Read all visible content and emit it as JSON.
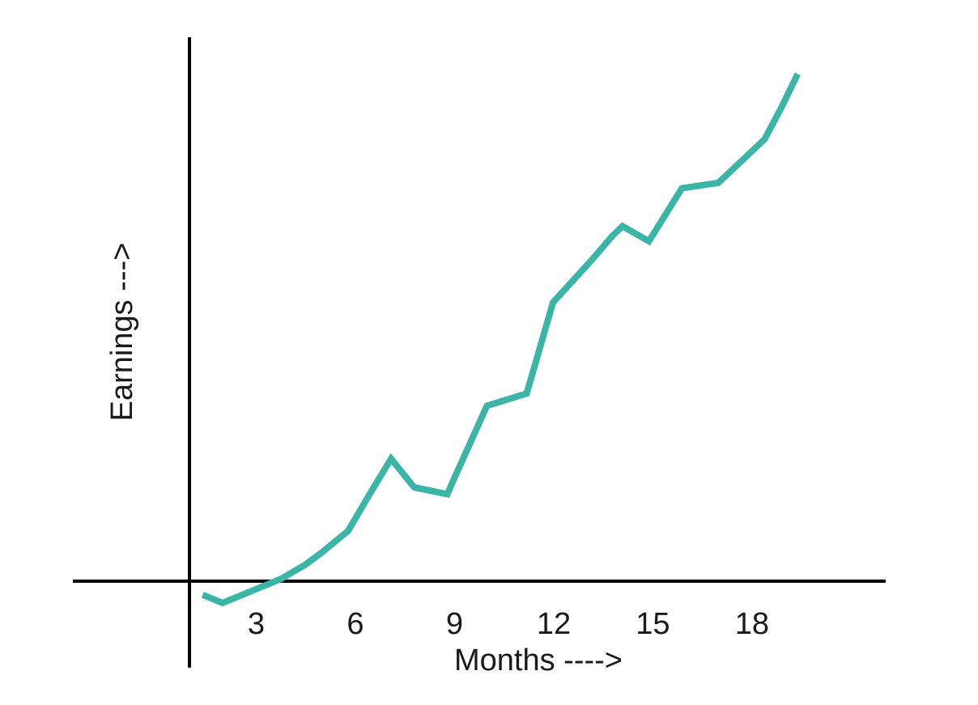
{
  "chart_data": {
    "type": "line",
    "title": "",
    "xlabel": "Months ---->",
    "ylabel": "Earnings --->",
    "x_ticks": [
      3,
      6,
      9,
      12,
      15,
      18
    ],
    "xlim": [
      -3.5,
      21
    ],
    "ylim": [
      -1,
      40
    ],
    "grid": false,
    "series": [
      {
        "color": "#3bb5a6",
        "points": [
          {
            "x": 0.4,
            "y": -1.0
          },
          {
            "x": 1.0,
            "y": -1.6
          },
          {
            "x": 2.4,
            "y": -0.2
          },
          {
            "x": 2.8,
            "y": 0.2
          },
          {
            "x": 3.5,
            "y": 1.2
          },
          {
            "x": 4.0,
            "y": 2.1
          },
          {
            "x": 4.8,
            "y": 3.7
          },
          {
            "x": 5.5,
            "y": 6.6
          },
          {
            "x": 6.1,
            "y": 9.0
          },
          {
            "x": 6.8,
            "y": 6.9
          },
          {
            "x": 7.8,
            "y": 6.4
          },
          {
            "x": 8.0,
            "y": 7.5
          },
          {
            "x": 9.0,
            "y": 12.9
          },
          {
            "x": 10.2,
            "y": 13.8
          },
          {
            "x": 11.0,
            "y": 20.5
          },
          {
            "x": 12.2,
            "y": 23.7
          },
          {
            "x": 12.8,
            "y": 25.4
          },
          {
            "x": 13.1,
            "y": 26.1
          },
          {
            "x": 13.9,
            "y": 25.0
          },
          {
            "x": 14.9,
            "y": 28.9
          },
          {
            "x": 16.0,
            "y": 29.3
          },
          {
            "x": 17.4,
            "y": 32.5
          },
          {
            "x": 17.9,
            "y": 34.8
          },
          {
            "x": 18.4,
            "y": 37.3
          }
        ]
      }
    ]
  }
}
